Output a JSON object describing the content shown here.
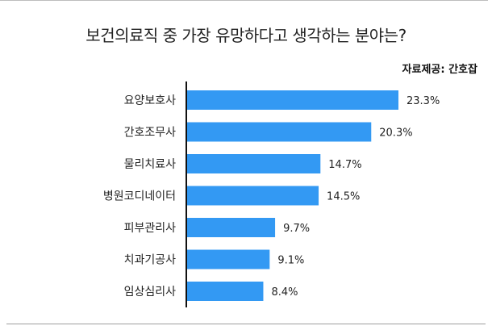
{
  "title": "보건의료직 중 가장 유망하다고 생각하는 분야는?",
  "source": "자료제공: 간호잡",
  "chart_data": {
    "type": "bar",
    "orientation": "horizontal",
    "categories": [
      "요양보호사",
      "간호조무사",
      "물리치료사",
      "병원코디네이터",
      "피부관리사",
      "치과기공사",
      "임상심리사"
    ],
    "values": [
      23.3,
      20.3,
      14.7,
      14.5,
      9.7,
      9.1,
      8.4
    ],
    "value_labels": [
      "23.3%",
      "20.3%",
      "14.7%",
      "14.5%",
      "9.7%",
      "9.1%",
      "8.4%"
    ],
    "bar_color": "#3399f3",
    "xlim": [
      0,
      23.3
    ],
    "grid": false,
    "legend": "none"
  }
}
